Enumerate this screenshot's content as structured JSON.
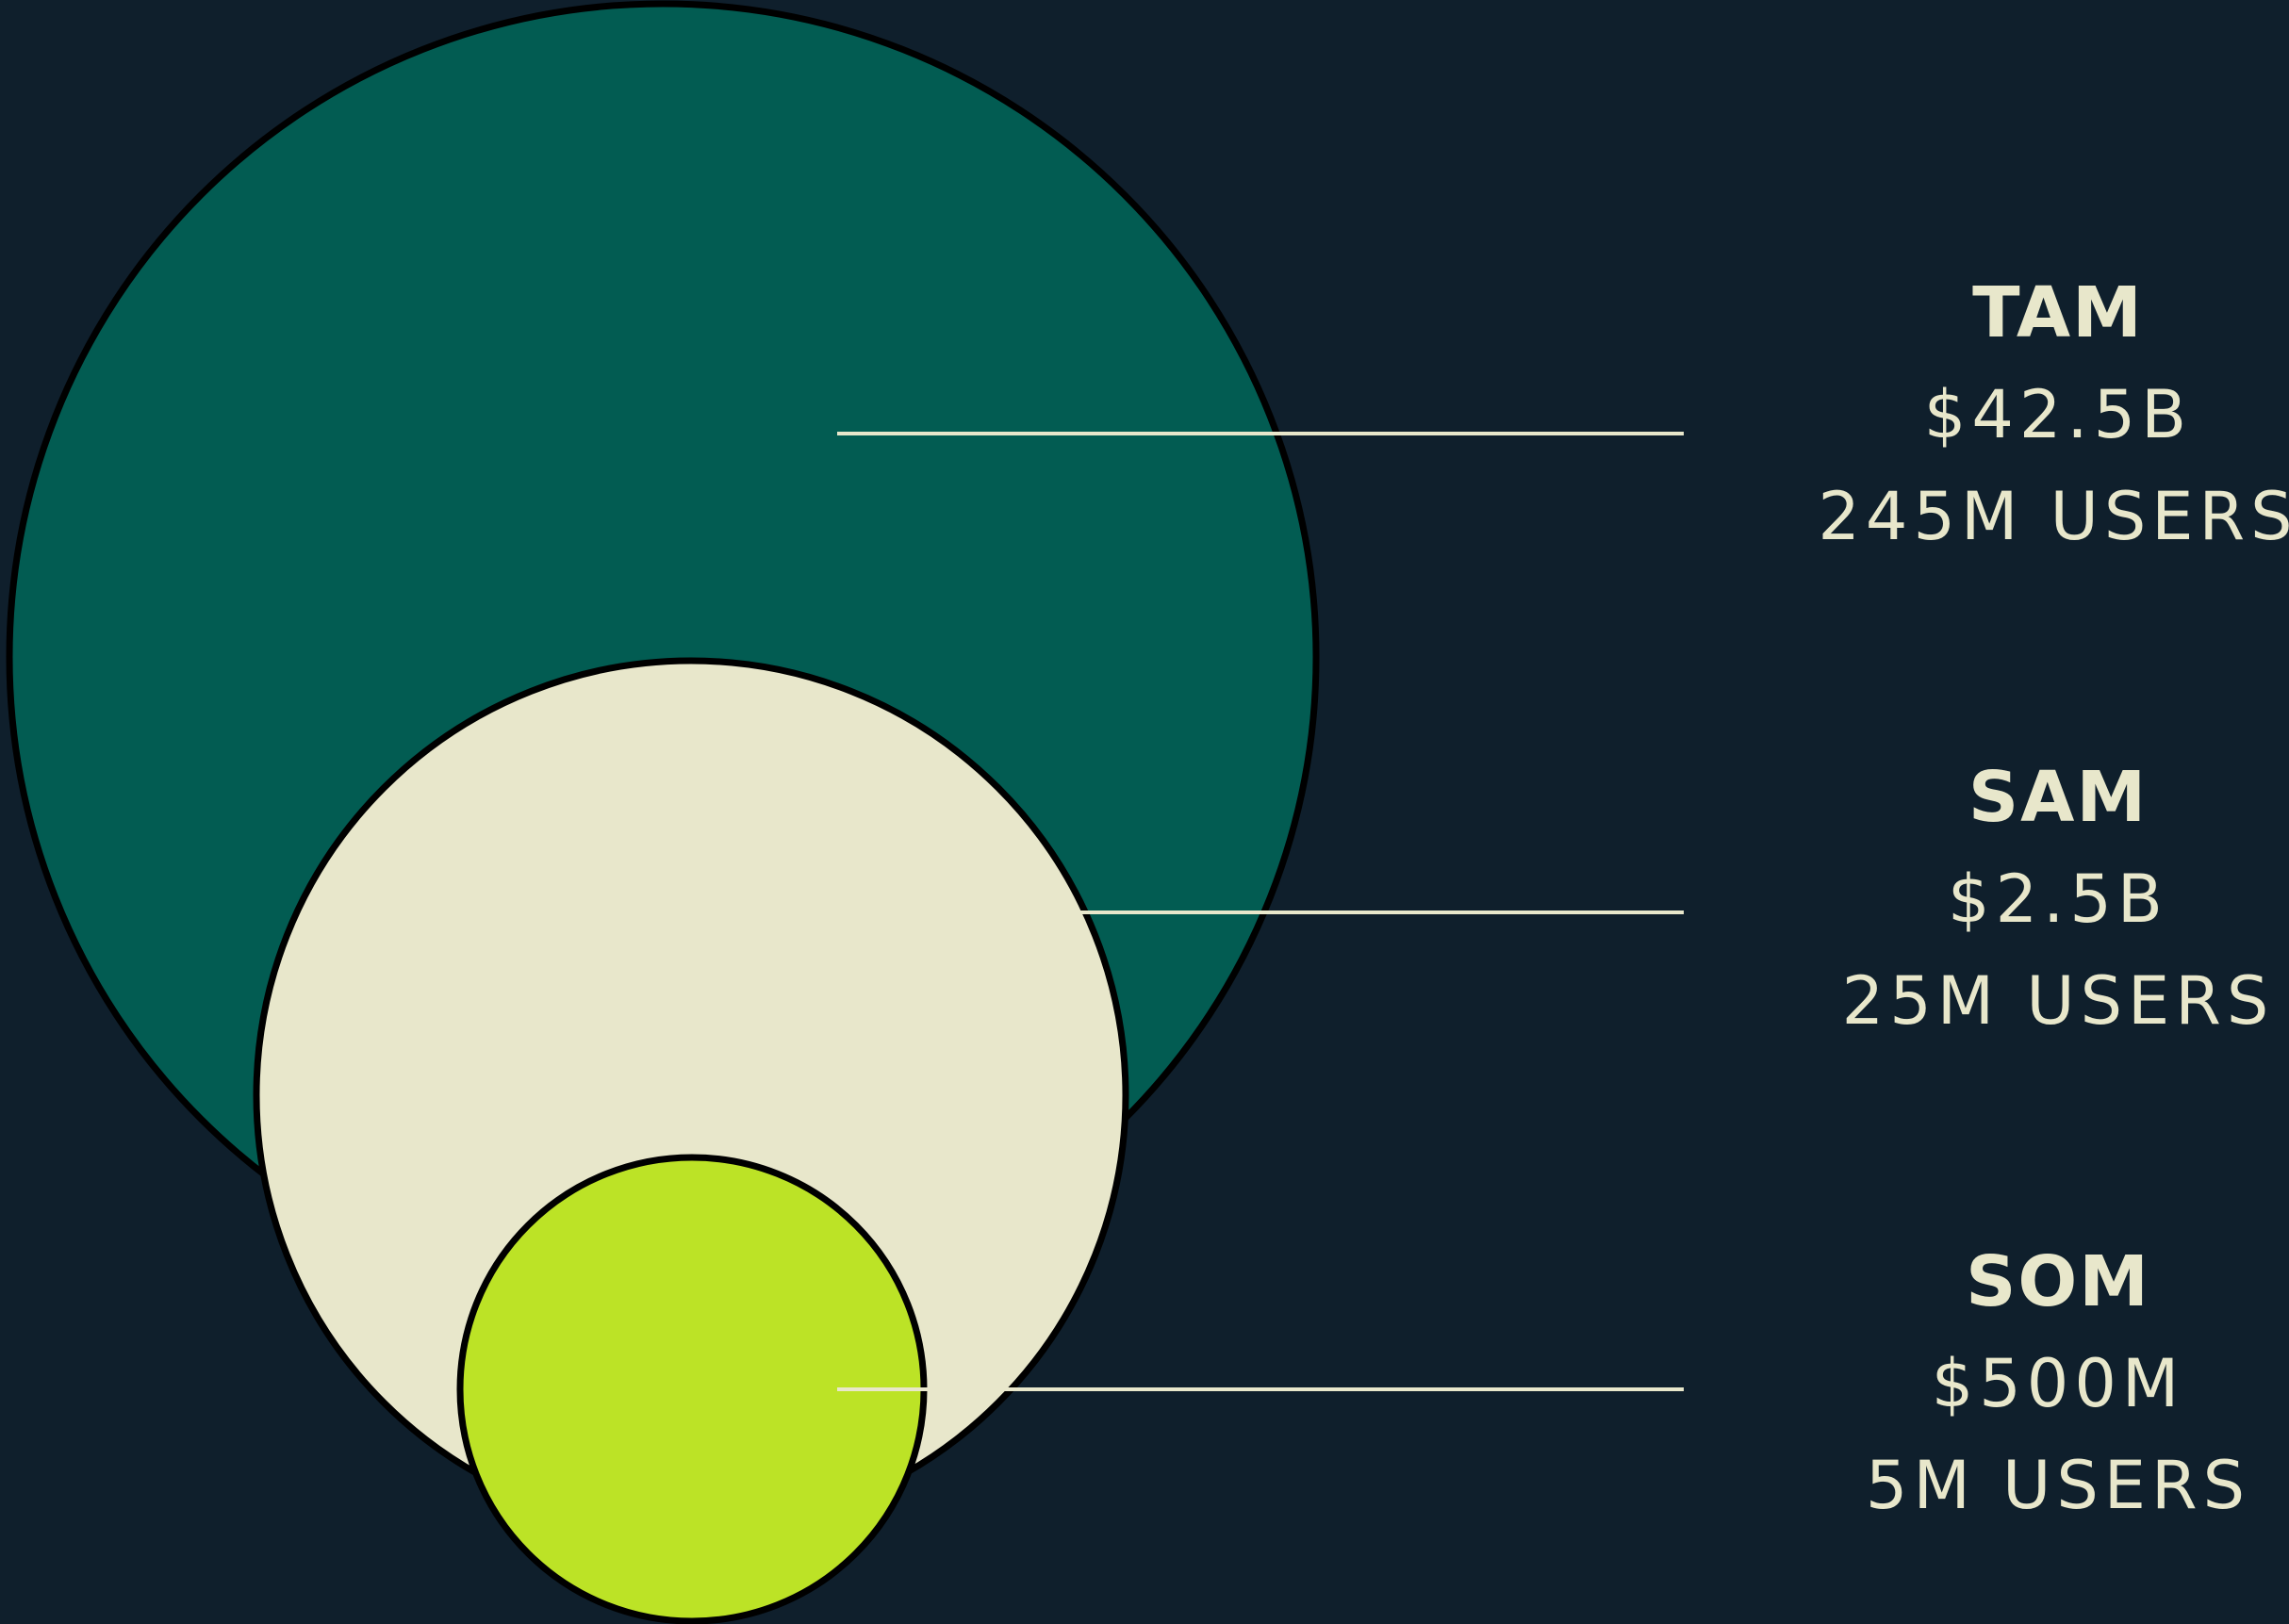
{
  "colors": {
    "background": "#0f1f2c",
    "tam_fill": "#025c52",
    "sam_fill": "#e8e7cb",
    "som_fill": "#bce326",
    "text": "#e8e7cb",
    "outline": "#000000"
  },
  "markets": [
    {
      "id": "tam",
      "name": "TAM",
      "value": "$42.5B",
      "users": "245M USERS"
    },
    {
      "id": "sam",
      "name": "SAM",
      "value": "$2.5B",
      "users": "25M USERS"
    },
    {
      "id": "som",
      "name": "SOM",
      "value": "$500M",
      "users": "5M USERS"
    }
  ]
}
